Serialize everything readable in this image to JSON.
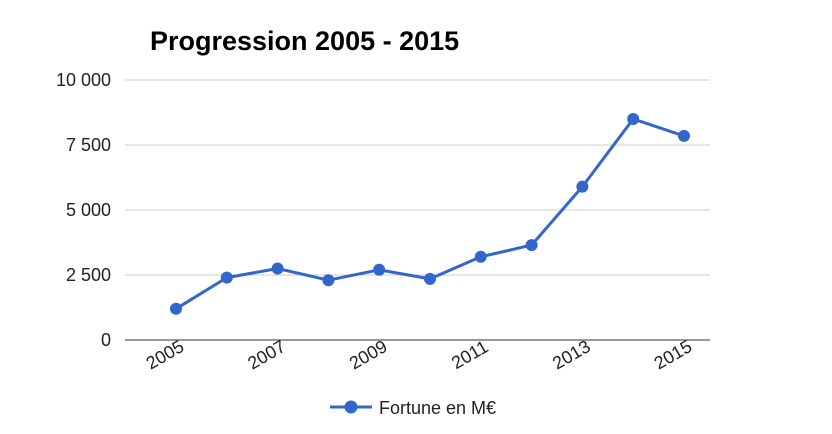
{
  "chart_data": {
    "type": "line",
    "title": "Progression 2005 - 2015",
    "x": [
      2005,
      2006,
      2007,
      2008,
      2009,
      2010,
      2011,
      2012,
      2013,
      2014,
      2015
    ],
    "x_tick_labels": [
      "2005",
      "2007",
      "2009",
      "2011",
      "2013",
      "2015"
    ],
    "y_tick_labels": [
      "0",
      "2 500",
      "5 000",
      "7 500",
      "10 000"
    ],
    "y_ticks": [
      0,
      2500,
      5000,
      7500,
      10000
    ],
    "ylim": [
      0,
      10000
    ],
    "xlim": [
      2005,
      2015
    ],
    "grid": true,
    "legend_position": "bottom",
    "series": [
      {
        "name": "Fortune en M€",
        "color": "#3366cc",
        "values": [
          1200,
          2400,
          2750,
          2300,
          2700,
          2350,
          3200,
          3650,
          5900,
          8500,
          7850
        ]
      }
    ]
  }
}
